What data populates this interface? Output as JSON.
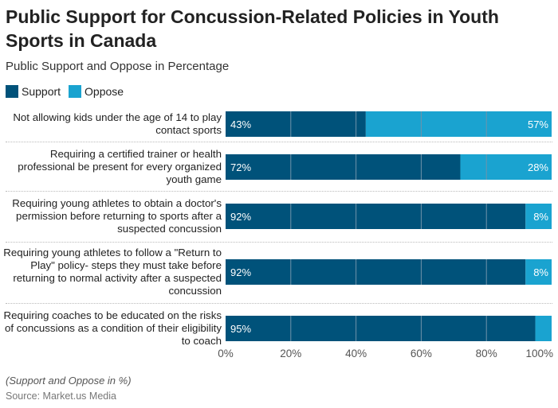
{
  "title": "Public Support for Concussion-Related Policies in Youth Sports in Canada",
  "subtitle": "Public Support and Oppose in Percentage",
  "footnote": "(Support and Oppose in %)",
  "source": "Source: Market.us Media",
  "colors": {
    "support": "#00527a",
    "oppose": "#1aa3d0",
    "gridline": "#6f93aa"
  },
  "chart_data": {
    "type": "bar",
    "orientation": "horizontal",
    "stacked": true,
    "categories": [
      "Not allowing kids under the age of 14 to play contact sports",
      "Requiring a certified trainer or health professional be present for every organized youth game",
      "Requiring young athletes to obtain a doctor's permission before returning to sports after a suspected concussion",
      "Requiring young athletes to follow a \"Return to Play\" policy- steps they must take before returning to normal activity after a suspected concussion",
      "Requiring coaches to be educated on the risks of concussions as a condition of their eligibility to coach"
    ],
    "series": [
      {
        "name": "Support",
        "values": [
          43,
          72,
          92,
          92,
          95
        ],
        "labels": [
          "43%",
          "72%",
          "92%",
          "92%",
          "95%"
        ]
      },
      {
        "name": "Oppose",
        "values": [
          57,
          28,
          8,
          8,
          5
        ],
        "labels": [
          "57%",
          "28%",
          "8%",
          "8%",
          ""
        ]
      }
    ],
    "xlim": [
      0,
      100
    ],
    "xticks": [
      "0%",
      "20%",
      "40%",
      "60%",
      "80%",
      "100%"
    ],
    "legend": "top-left",
    "grid": true
  }
}
